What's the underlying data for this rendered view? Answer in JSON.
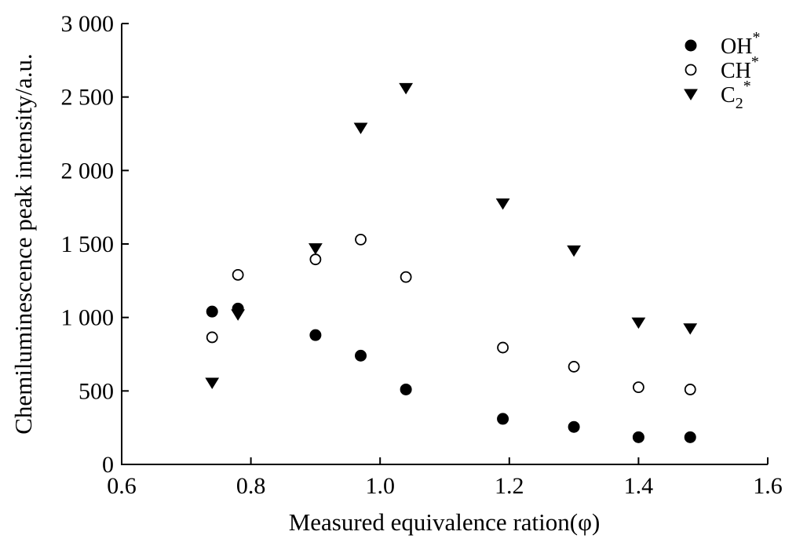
{
  "chart_data": {
    "type": "scatter",
    "xlabel": "Measured equivalence ration(φ)",
    "ylabel": "Chemiluminescence peak intensity/a.u.",
    "xlim": [
      0.6,
      1.6
    ],
    "ylim": [
      0,
      3000
    ],
    "x_ticks": [
      0.6,
      0.8,
      1.0,
      1.2,
      1.4,
      1.6
    ],
    "x_tick_labels": [
      "0.6",
      "0.8",
      "1.0",
      "1.2",
      "1.4",
      "1.6"
    ],
    "y_ticks": [
      0,
      500,
      1000,
      1500,
      2000,
      2500,
      3000
    ],
    "y_tick_labels": [
      "0",
      "500",
      "1 000",
      "1 500",
      "2 000",
      "2 500",
      "3 000"
    ],
    "grid": false,
    "legend_position": "top-right",
    "series": [
      {
        "name": "OH*",
        "marker": "filled-circle",
        "color": "#000000",
        "points": [
          [
            0.74,
            1040
          ],
          [
            0.78,
            1060
          ],
          [
            0.9,
            880
          ],
          [
            0.97,
            740
          ],
          [
            1.04,
            510
          ],
          [
            1.19,
            310
          ],
          [
            1.3,
            255
          ],
          [
            1.4,
            185
          ],
          [
            1.48,
            185
          ]
        ]
      },
      {
        "name": "CH*",
        "marker": "open-circle",
        "color": "#000000",
        "points": [
          [
            0.74,
            865
          ],
          [
            0.78,
            1290
          ],
          [
            0.9,
            1395
          ],
          [
            0.97,
            1530
          ],
          [
            1.04,
            1275
          ],
          [
            1.19,
            795
          ],
          [
            1.3,
            665
          ],
          [
            1.4,
            525
          ],
          [
            1.48,
            510
          ]
        ]
      },
      {
        "name": "C2*",
        "marker": "filled-triangle-down",
        "color": "#000000",
        "points": [
          [
            0.74,
            555
          ],
          [
            0.78,
            1020
          ],
          [
            0.9,
            1470
          ],
          [
            0.97,
            2290
          ],
          [
            1.04,
            2560
          ],
          [
            1.19,
            1775
          ],
          [
            1.3,
            1455
          ],
          [
            1.4,
            965
          ],
          [
            1.48,
            925
          ]
        ]
      }
    ]
  }
}
